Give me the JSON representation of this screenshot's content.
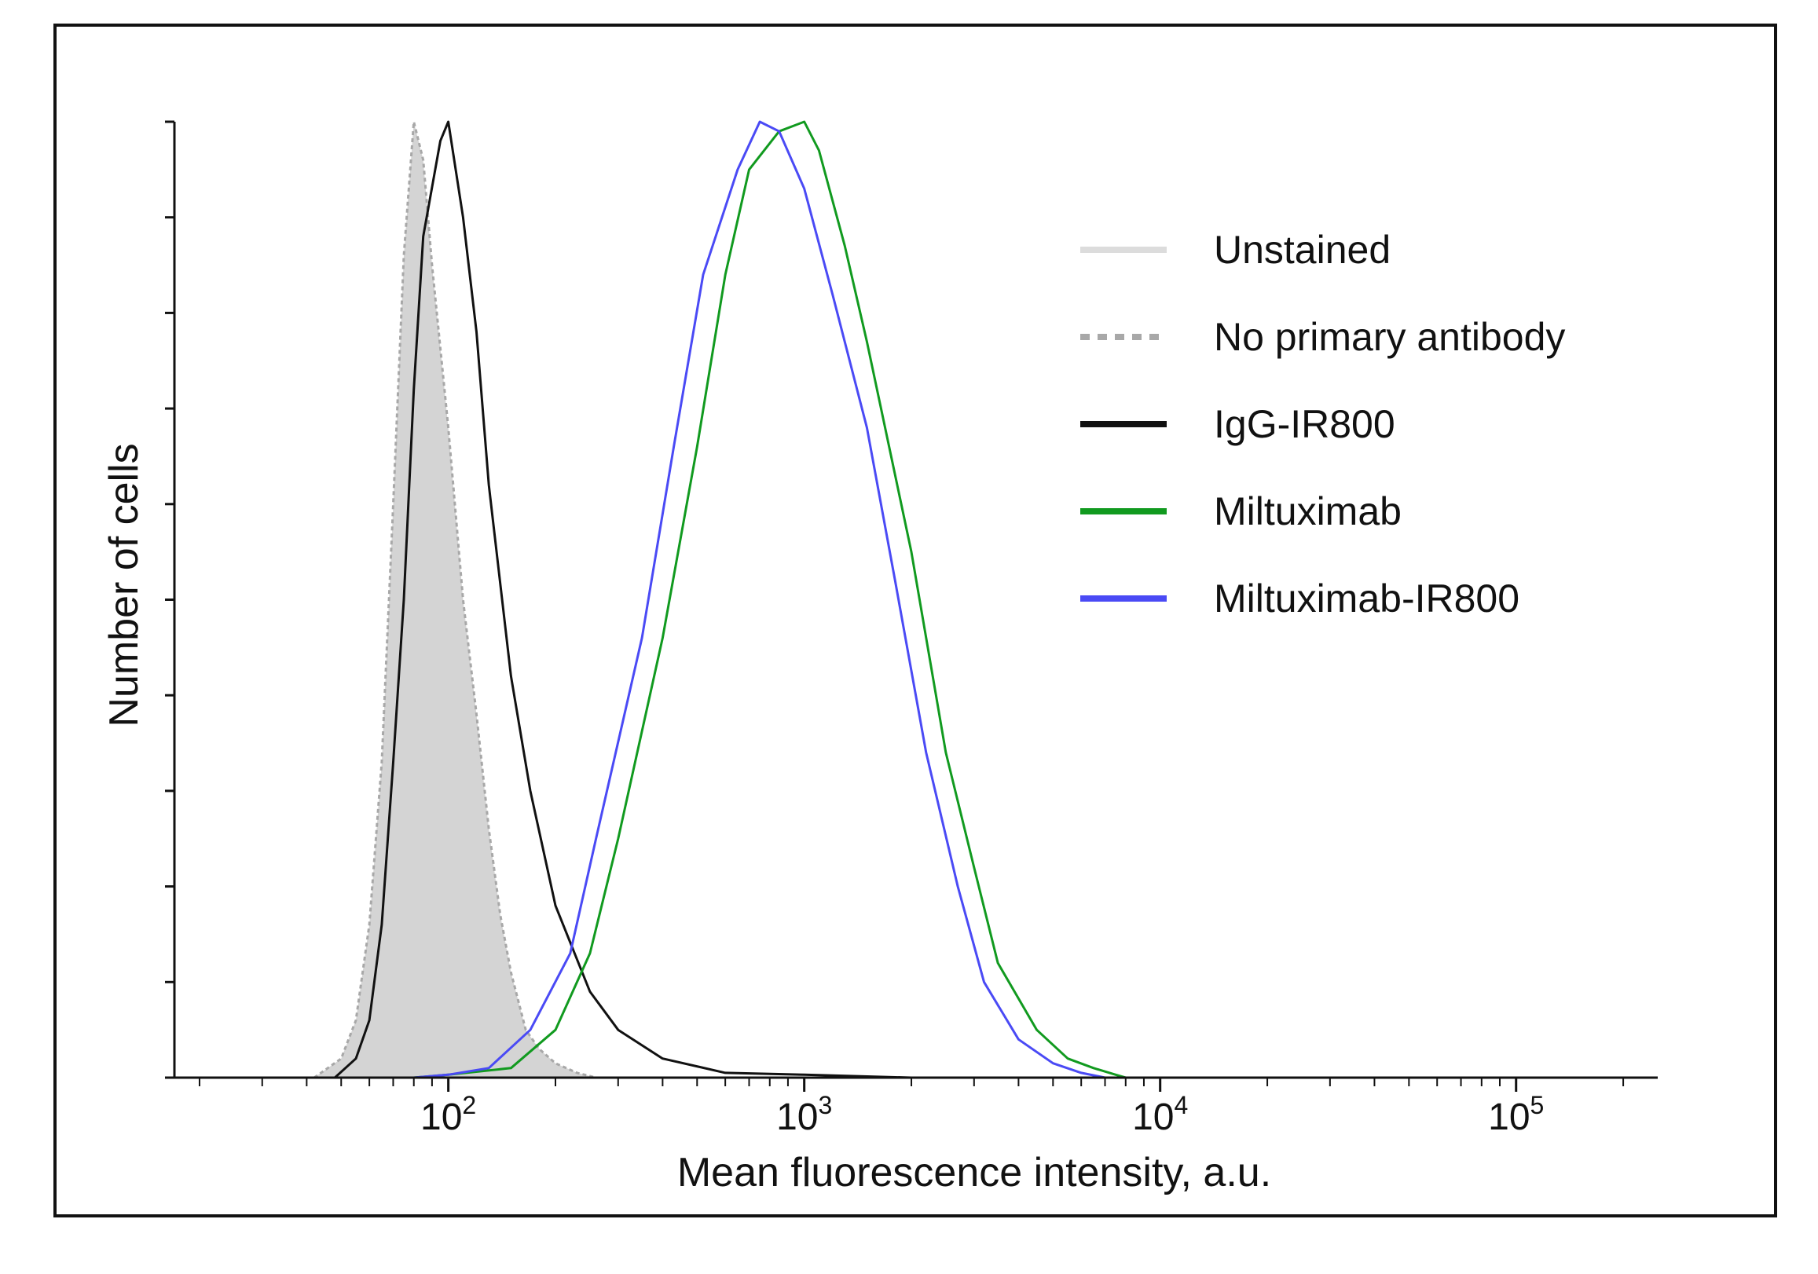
{
  "chart_data": {
    "type": "histogram",
    "title": "",
    "xlabel": "Mean fluorescence intensity, a.u.",
    "ylabel": "Number of cells",
    "xscale": "log",
    "xlim": [
      17,
      250000
    ],
    "ylim": [
      0,
      1.0
    ],
    "x_ticks": [
      {
        "base": "10",
        "exp": "2",
        "value": 100
      },
      {
        "base": "10",
        "exp": "3",
        "value": 1000
      },
      {
        "base": "10",
        "exp": "4",
        "value": 10000
      },
      {
        "base": "10",
        "exp": "5",
        "value": 100000
      }
    ],
    "y_ticks_count": 11,
    "legend_position": "top-right",
    "series": [
      {
        "name": "Unstained",
        "color": "#d4d4d4",
        "style": "filled",
        "points": [
          [
            42,
            0
          ],
          [
            50,
            0.02
          ],
          [
            55,
            0.06
          ],
          [
            60,
            0.16
          ],
          [
            65,
            0.33
          ],
          [
            70,
            0.6
          ],
          [
            75,
            0.86
          ],
          [
            80,
            1.0
          ],
          [
            85,
            0.96
          ],
          [
            90,
            0.85
          ],
          [
            100,
            0.68
          ],
          [
            110,
            0.5
          ],
          [
            120,
            0.38
          ],
          [
            130,
            0.26
          ],
          [
            140,
            0.17
          ],
          [
            150,
            0.11
          ],
          [
            165,
            0.05
          ],
          [
            180,
            0.03
          ],
          [
            200,
            0.015
          ],
          [
            230,
            0.005
          ],
          [
            260,
            0
          ]
        ]
      },
      {
        "name": "No primary antibody",
        "color": "#a8a8a8",
        "style": "dotted",
        "points": [
          [
            42,
            0
          ],
          [
            50,
            0.02
          ],
          [
            55,
            0.06
          ],
          [
            60,
            0.16
          ],
          [
            65,
            0.33
          ],
          [
            70,
            0.6
          ],
          [
            75,
            0.86
          ],
          [
            80,
            1.0
          ],
          [
            85,
            0.96
          ],
          [
            90,
            0.85
          ],
          [
            100,
            0.68
          ],
          [
            110,
            0.5
          ],
          [
            120,
            0.38
          ],
          [
            130,
            0.26
          ],
          [
            140,
            0.17
          ],
          [
            150,
            0.11
          ],
          [
            165,
            0.05
          ],
          [
            180,
            0.03
          ],
          [
            200,
            0.015
          ],
          [
            230,
            0.005
          ],
          [
            260,
            0
          ]
        ]
      },
      {
        "name": "IgG-IR800",
        "color": "#111111",
        "style": "solid",
        "points": [
          [
            48,
            0
          ],
          [
            55,
            0.02
          ],
          [
            60,
            0.06
          ],
          [
            65,
            0.16
          ],
          [
            70,
            0.33
          ],
          [
            75,
            0.5
          ],
          [
            80,
            0.72
          ],
          [
            85,
            0.88
          ],
          [
            95,
            0.98
          ],
          [
            100,
            1.0
          ],
          [
            110,
            0.9
          ],
          [
            120,
            0.78
          ],
          [
            130,
            0.62
          ],
          [
            150,
            0.42
          ],
          [
            170,
            0.3
          ],
          [
            200,
            0.18
          ],
          [
            250,
            0.09
          ],
          [
            300,
            0.05
          ],
          [
            400,
            0.02
          ],
          [
            600,
            0.005
          ],
          [
            1000,
            0.003
          ],
          [
            2000,
            0
          ]
        ]
      },
      {
        "name": "Miltuximab",
        "color": "#119a1f",
        "style": "solid",
        "points": [
          [
            80,
            0
          ],
          [
            100,
            0.003
          ],
          [
            150,
            0.01
          ],
          [
            200,
            0.05
          ],
          [
            250,
            0.13
          ],
          [
            300,
            0.25
          ],
          [
            400,
            0.46
          ],
          [
            500,
            0.66
          ],
          [
            600,
            0.84
          ],
          [
            700,
            0.95
          ],
          [
            850,
            0.99
          ],
          [
            1000,
            1.0
          ],
          [
            1100,
            0.97
          ],
          [
            1300,
            0.87
          ],
          [
            1500,
            0.77
          ],
          [
            2000,
            0.55
          ],
          [
            2500,
            0.34
          ],
          [
            3000,
            0.22
          ],
          [
            3500,
            0.12
          ],
          [
            4500,
            0.05
          ],
          [
            5500,
            0.02
          ],
          [
            6500,
            0.01
          ],
          [
            7500,
            0.003
          ],
          [
            8000,
            0
          ]
        ]
      },
      {
        "name": "Miltuximab-IR800",
        "color": "#4a4af5",
        "style": "solid",
        "points": [
          [
            80,
            0
          ],
          [
            100,
            0.003
          ],
          [
            130,
            0.01
          ],
          [
            170,
            0.05
          ],
          [
            220,
            0.13
          ],
          [
            260,
            0.25
          ],
          [
            350,
            0.46
          ],
          [
            430,
            0.66
          ],
          [
            520,
            0.84
          ],
          [
            650,
            0.95
          ],
          [
            750,
            1.0
          ],
          [
            850,
            0.99
          ],
          [
            1000,
            0.93
          ],
          [
            1200,
            0.82
          ],
          [
            1500,
            0.68
          ],
          [
            1800,
            0.52
          ],
          [
            2200,
            0.34
          ],
          [
            2700,
            0.2
          ],
          [
            3200,
            0.1
          ],
          [
            4000,
            0.04
          ],
          [
            5000,
            0.015
          ],
          [
            6000,
            0.005
          ],
          [
            7000,
            0
          ]
        ]
      }
    ]
  }
}
